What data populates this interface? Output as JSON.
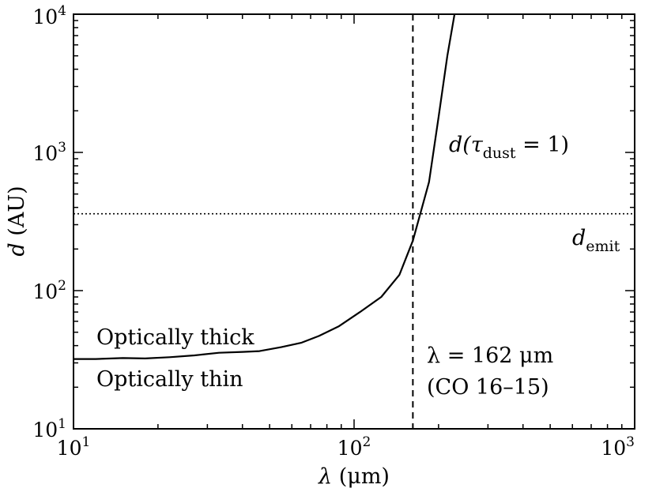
{
  "chart_data": {
    "type": "line",
    "title": "",
    "xlabel": {
      "symbol": "λ",
      "unit": "(μm)"
    },
    "ylabel": {
      "symbol": "d",
      "unit": "(AU)"
    },
    "xscale": "log",
    "yscale": "log",
    "xlim": [
      10,
      1000
    ],
    "ylim": [
      10,
      10000
    ],
    "x_ticks": [
      {
        "base": "10",
        "exp": "1"
      },
      {
        "base": "10",
        "exp": "2"
      },
      {
        "base": "10",
        "exp": "3"
      }
    ],
    "y_ticks": [
      {
        "base": "10",
        "exp": "1"
      },
      {
        "base": "10",
        "exp": "2"
      },
      {
        "base": "10",
        "exp": "3"
      },
      {
        "base": "10",
        "exp": "4"
      }
    ],
    "series": [
      {
        "name": "d(τ_dust = 1)",
        "style": "solid",
        "x": [
          10,
          12,
          15,
          18,
          22,
          27,
          33,
          40,
          46,
          55,
          65,
          75,
          88,
          105,
          125,
          145,
          162,
          185,
          200,
          215,
          228
        ],
        "y": [
          32,
          32,
          32.5,
          32.3,
          33,
          34,
          35.5,
          36,
          36.5,
          39,
          42,
          47,
          55,
          70,
          90,
          130,
          230,
          610,
          1800,
          5000,
          10000
        ]
      }
    ],
    "reference_lines": [
      {
        "name": "d_emit",
        "orientation": "horizontal",
        "value": 360,
        "style": "dotted"
      },
      {
        "name": "lambda_162",
        "orientation": "vertical",
        "value": 162,
        "style": "dashed"
      }
    ],
    "annotations": {
      "curve_label": {
        "prefix": "d(",
        "tau": "τ",
        "sub": "dust",
        "suffix": " = 1)"
      },
      "emit_label": {
        "base": "d",
        "sub": "emit"
      },
      "optically_thick": "Optically thick",
      "optically_thin": "Optically thin",
      "wavelength_line": "λ = 162 μm",
      "transition_line": "(CO 16–15)"
    }
  }
}
